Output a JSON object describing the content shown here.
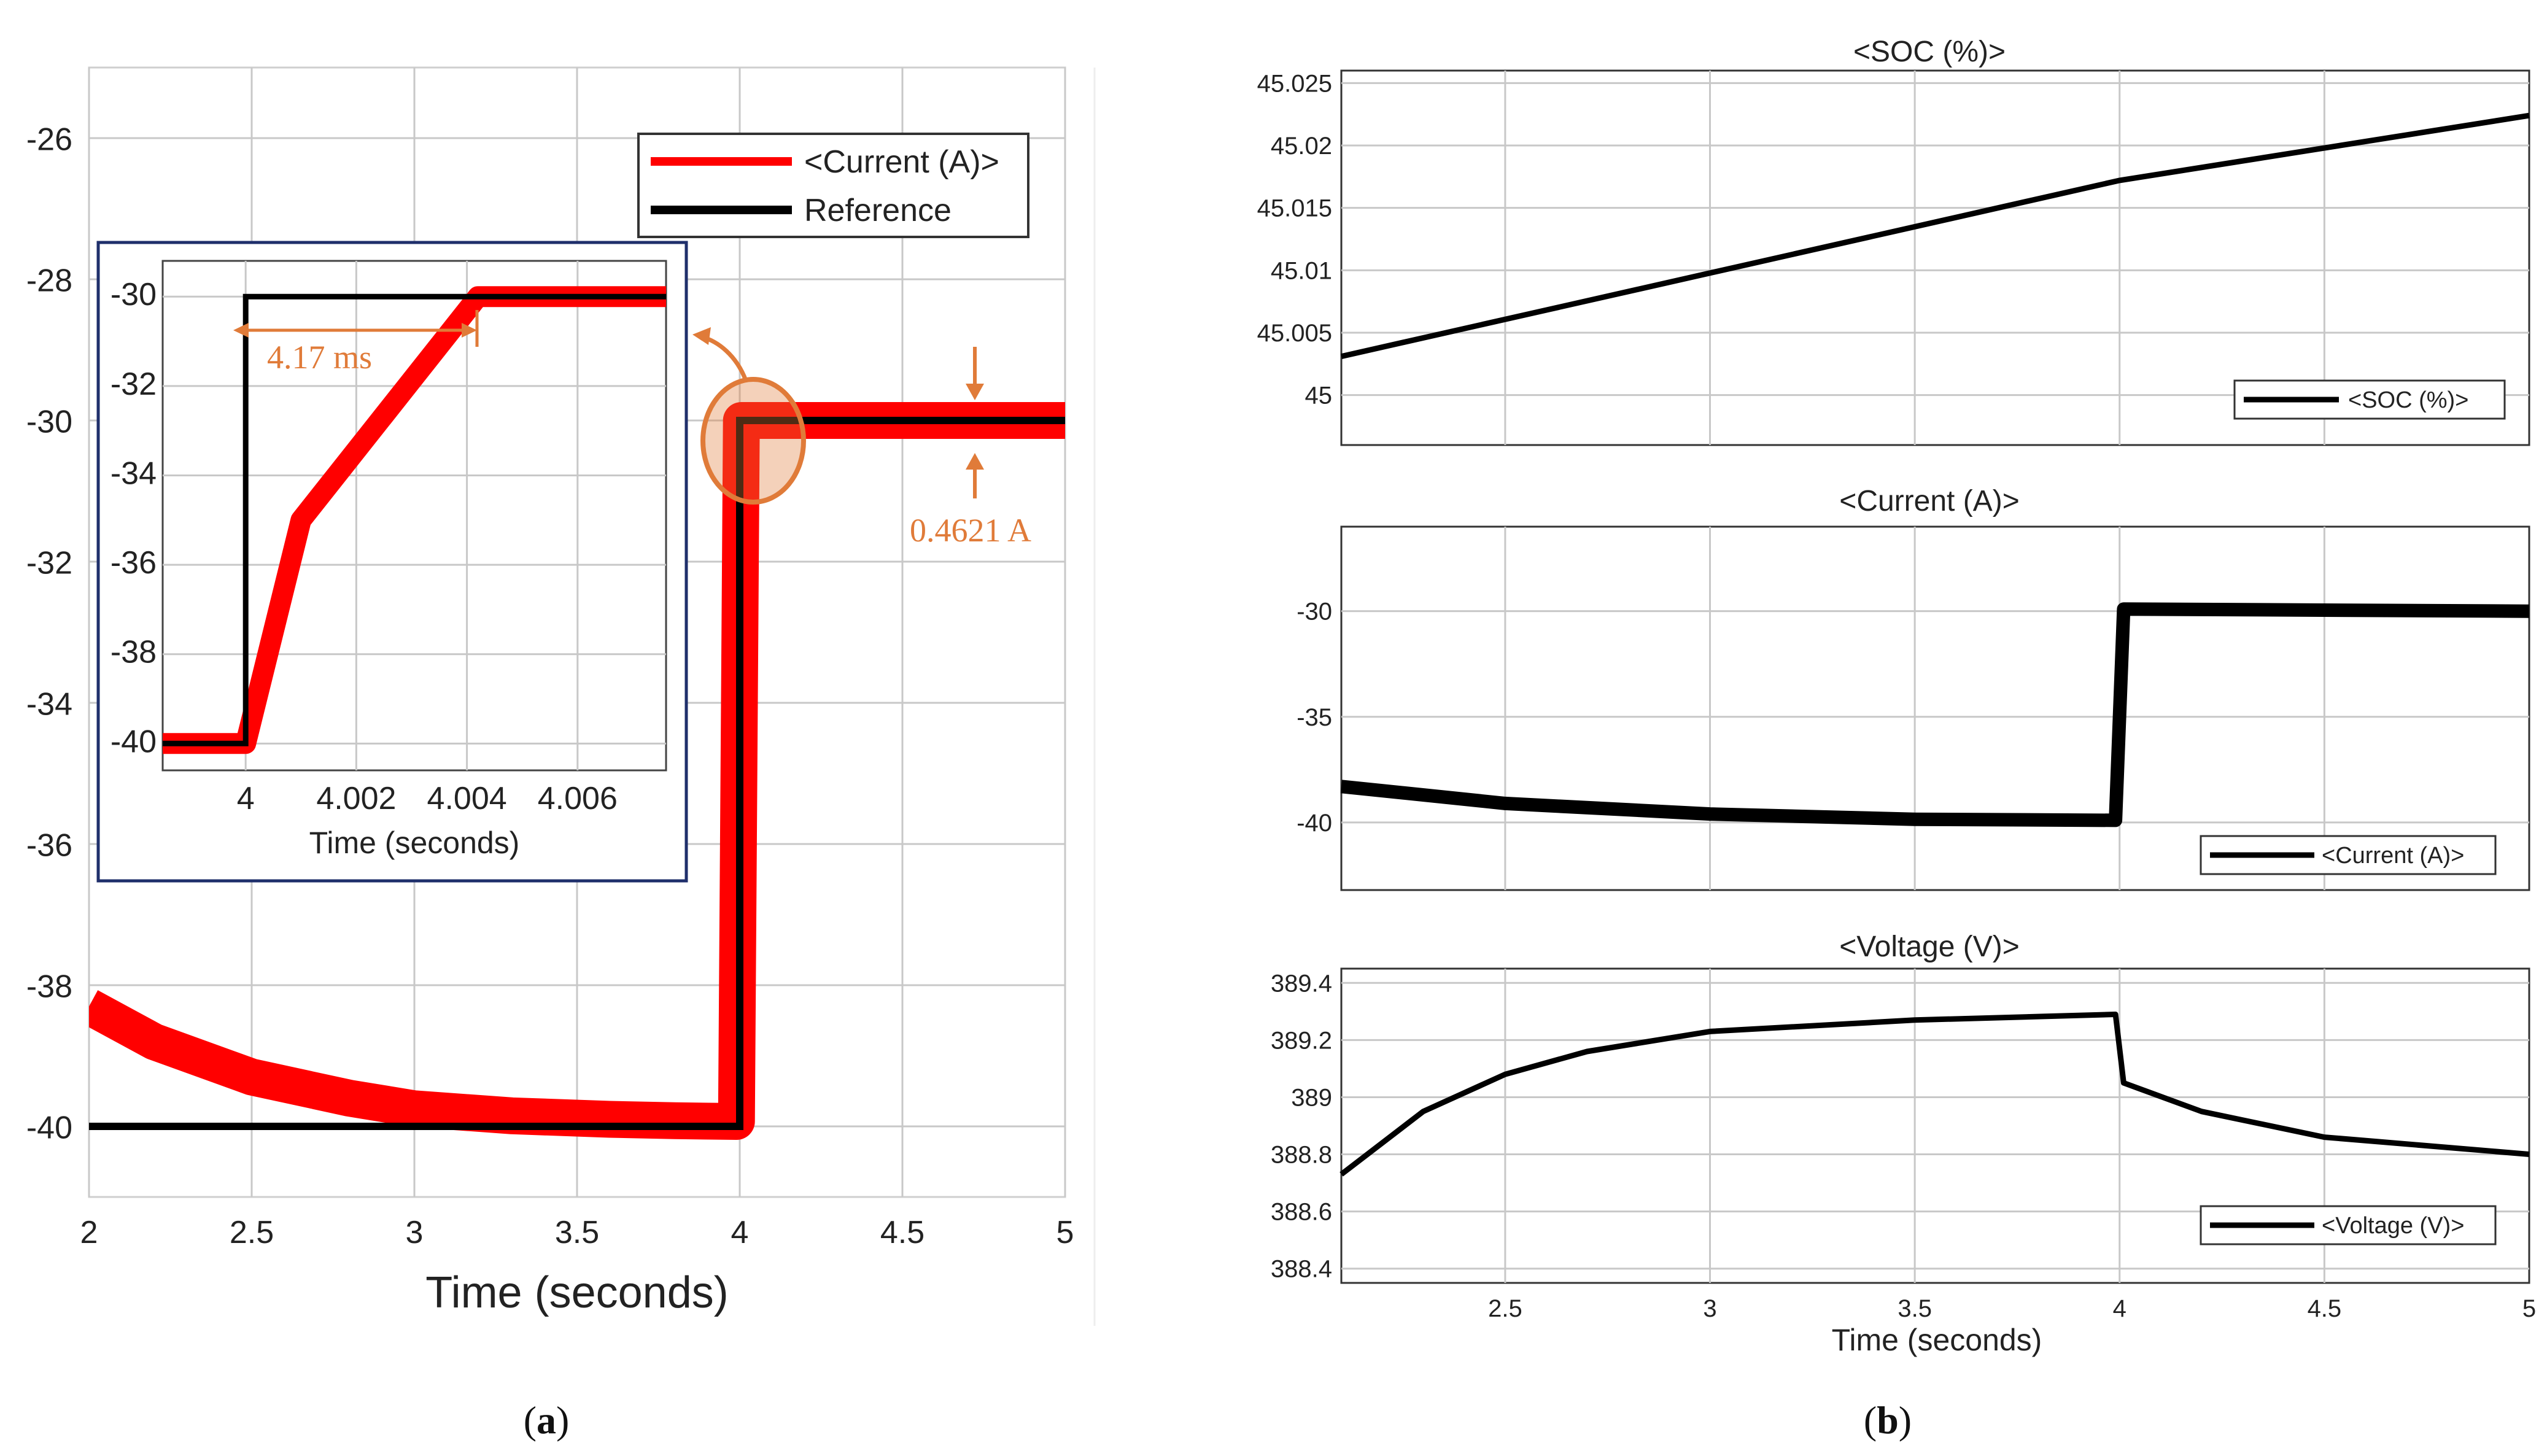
{
  "colors": {
    "current": "#ff0000",
    "reference": "#000000",
    "annotation": "#e07b39",
    "inset_border": "#1f2f6b",
    "grid": "#c8c8c8"
  },
  "captions": {
    "a_open": "(",
    "a_letter": "a",
    "a_close": ")",
    "b_open": "(",
    "b_letter": "b",
    "b_close": ")"
  },
  "chart_data": [
    {
      "id": "a_main",
      "type": "line",
      "title": "",
      "xlabel": "Time (seconds)",
      "ylabel": "",
      "xlim": [
        2,
        5
      ],
      "ylim": [
        -41,
        -25
      ],
      "xticks": [
        "2",
        "2.5",
        "3",
        "3.5",
        "4",
        "4.5",
        "5"
      ],
      "yticks": [
        "-26",
        "-28",
        "-30",
        "-32",
        "-34",
        "-36",
        "-38",
        "-40"
      ],
      "legend": [
        "<Current (A)>",
        "Reference"
      ],
      "series": [
        {
          "name": "<Current (A)>",
          "x": [
            2.0,
            2.2,
            2.5,
            2.8,
            3.0,
            3.3,
            3.6,
            3.8,
            3.99,
            4.005,
            4.5,
            5.0
          ],
          "y": [
            -38.3,
            -38.8,
            -39.3,
            -39.6,
            -39.75,
            -39.85,
            -39.9,
            -39.92,
            -39.93,
            -30.0,
            -30.0,
            -30.0
          ]
        },
        {
          "name": "Reference",
          "x": [
            2.0,
            4.0,
            4.0,
            5.0
          ],
          "y": [
            -40,
            -40,
            -30,
            -30
          ]
        }
      ],
      "annotations": {
        "ripple": "0.4621 A"
      }
    },
    {
      "id": "a_inset",
      "type": "line",
      "xlabel": "Time (seconds)",
      "xlim": [
        3.9985,
        4.0076
      ],
      "ylim": [
        -40.6,
        -29.2
      ],
      "xticks": [
        "4",
        "4.002",
        "4.004",
        "4.006"
      ],
      "yticks": [
        "-30",
        "-32",
        "-34",
        "-36",
        "-38",
        "-40"
      ],
      "series": [
        {
          "name": "<Current (A)>",
          "x": [
            3.9985,
            4.0,
            4.001,
            4.0042,
            4.0076
          ],
          "y": [
            -40.0,
            -40.0,
            -35.0,
            -30.0,
            -30.0
          ]
        },
        {
          "name": "Reference",
          "x": [
            3.9985,
            4.0,
            4.0,
            4.0076
          ],
          "y": [
            -40,
            -40,
            -30,
            -30
          ]
        }
      ],
      "annotations": {
        "rise_time": "4.17 ms"
      }
    },
    {
      "id": "b_soc",
      "type": "line",
      "title": "<SOC (%)>",
      "xlim": [
        2.1,
        5
      ],
      "ylim": [
        44.996,
        45.026
      ],
      "yticks": [
        "45.025",
        "45.02",
        "45.015",
        "45.01",
        "45.005",
        "45"
      ],
      "legend": [
        "<SOC (%)>"
      ],
      "series": [
        {
          "name": "<SOC (%)>",
          "x": [
            2.1,
            4.0,
            5.0
          ],
          "y": [
            45.0031,
            45.0172,
            45.0224
          ]
        }
      ]
    },
    {
      "id": "b_current",
      "type": "line",
      "title": "<Current (A)>",
      "xlim": [
        2.1,
        5
      ],
      "ylim": [
        -43.2,
        -26.0
      ],
      "yticks": [
        "-30",
        "-35",
        "-40"
      ],
      "legend": [
        "<Current (A)>"
      ],
      "series": [
        {
          "name": "<Current (A)>",
          "x": [
            2.1,
            2.5,
            3.0,
            3.5,
            3.99,
            4.01,
            4.5,
            5.0
          ],
          "y": [
            -38.3,
            -39.1,
            -39.6,
            -39.85,
            -39.9,
            -29.9,
            -29.95,
            -30.0
          ]
        }
      ]
    },
    {
      "id": "b_voltage",
      "type": "line",
      "title": "<Voltage (V)>",
      "xlabel": "Time (seconds)",
      "xlim": [
        2.1,
        5
      ],
      "ylim": [
        388.35,
        389.45
      ],
      "xticks": [
        "2.5",
        "3",
        "3.5",
        "4",
        "4.5",
        "5"
      ],
      "yticks": [
        "389.4",
        "389.2",
        "389",
        "388.8",
        "388.6",
        "388.4"
      ],
      "legend": [
        "<Voltage (V)>"
      ],
      "series": [
        {
          "name": "<Voltage (V)>",
          "x": [
            2.1,
            2.3,
            2.5,
            2.7,
            3.0,
            3.5,
            3.99,
            4.01,
            4.2,
            4.5,
            5.0
          ],
          "y": [
            388.73,
            388.95,
            389.08,
            389.16,
            389.23,
            389.27,
            389.29,
            389.05,
            388.95,
            388.86,
            388.8
          ]
        }
      ]
    }
  ]
}
